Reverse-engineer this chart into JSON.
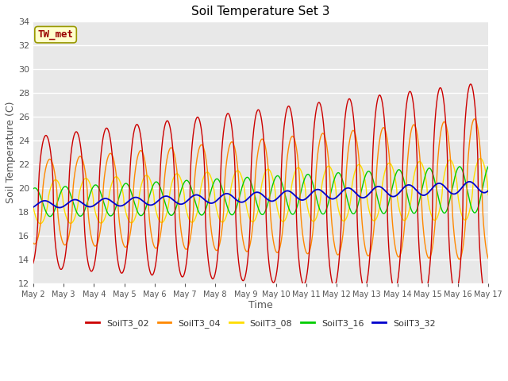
{
  "title": "Soil Temperature Set 3",
  "xlabel": "Time",
  "ylabel": "Soil Temperature (C)",
  "ylim": [
    12,
    34
  ],
  "background_color": "#ffffff",
  "plot_bg_color": "#e8e8e8",
  "series_colors": {
    "SoilT3_02": "#cc0000",
    "SoilT3_04": "#ff8800",
    "SoilT3_08": "#ffdd00",
    "SoilT3_16": "#00cc00",
    "SoilT3_32": "#0000cc"
  },
  "tw_met_label": "TW_met",
  "tw_met_bg": "#ffffcc",
  "tw_met_border": "#999900",
  "tw_met_color": "#990000",
  "yticks": [
    12,
    14,
    16,
    18,
    20,
    22,
    24,
    26,
    28,
    30,
    32,
    34
  ],
  "xtick_labels": [
    "May 2",
    "May 3",
    "May 4",
    "May 5",
    "May 6",
    "May 7",
    "May 8",
    "May 9",
    "May 10",
    "May 11",
    "May 12",
    "May 13",
    "May 14",
    "May 15",
    "May 16",
    "May 17"
  ],
  "legend_entries": [
    "SoilT3_02",
    "SoilT3_04",
    "SoilT3_08",
    "SoilT3_16",
    "SoilT3_32"
  ]
}
